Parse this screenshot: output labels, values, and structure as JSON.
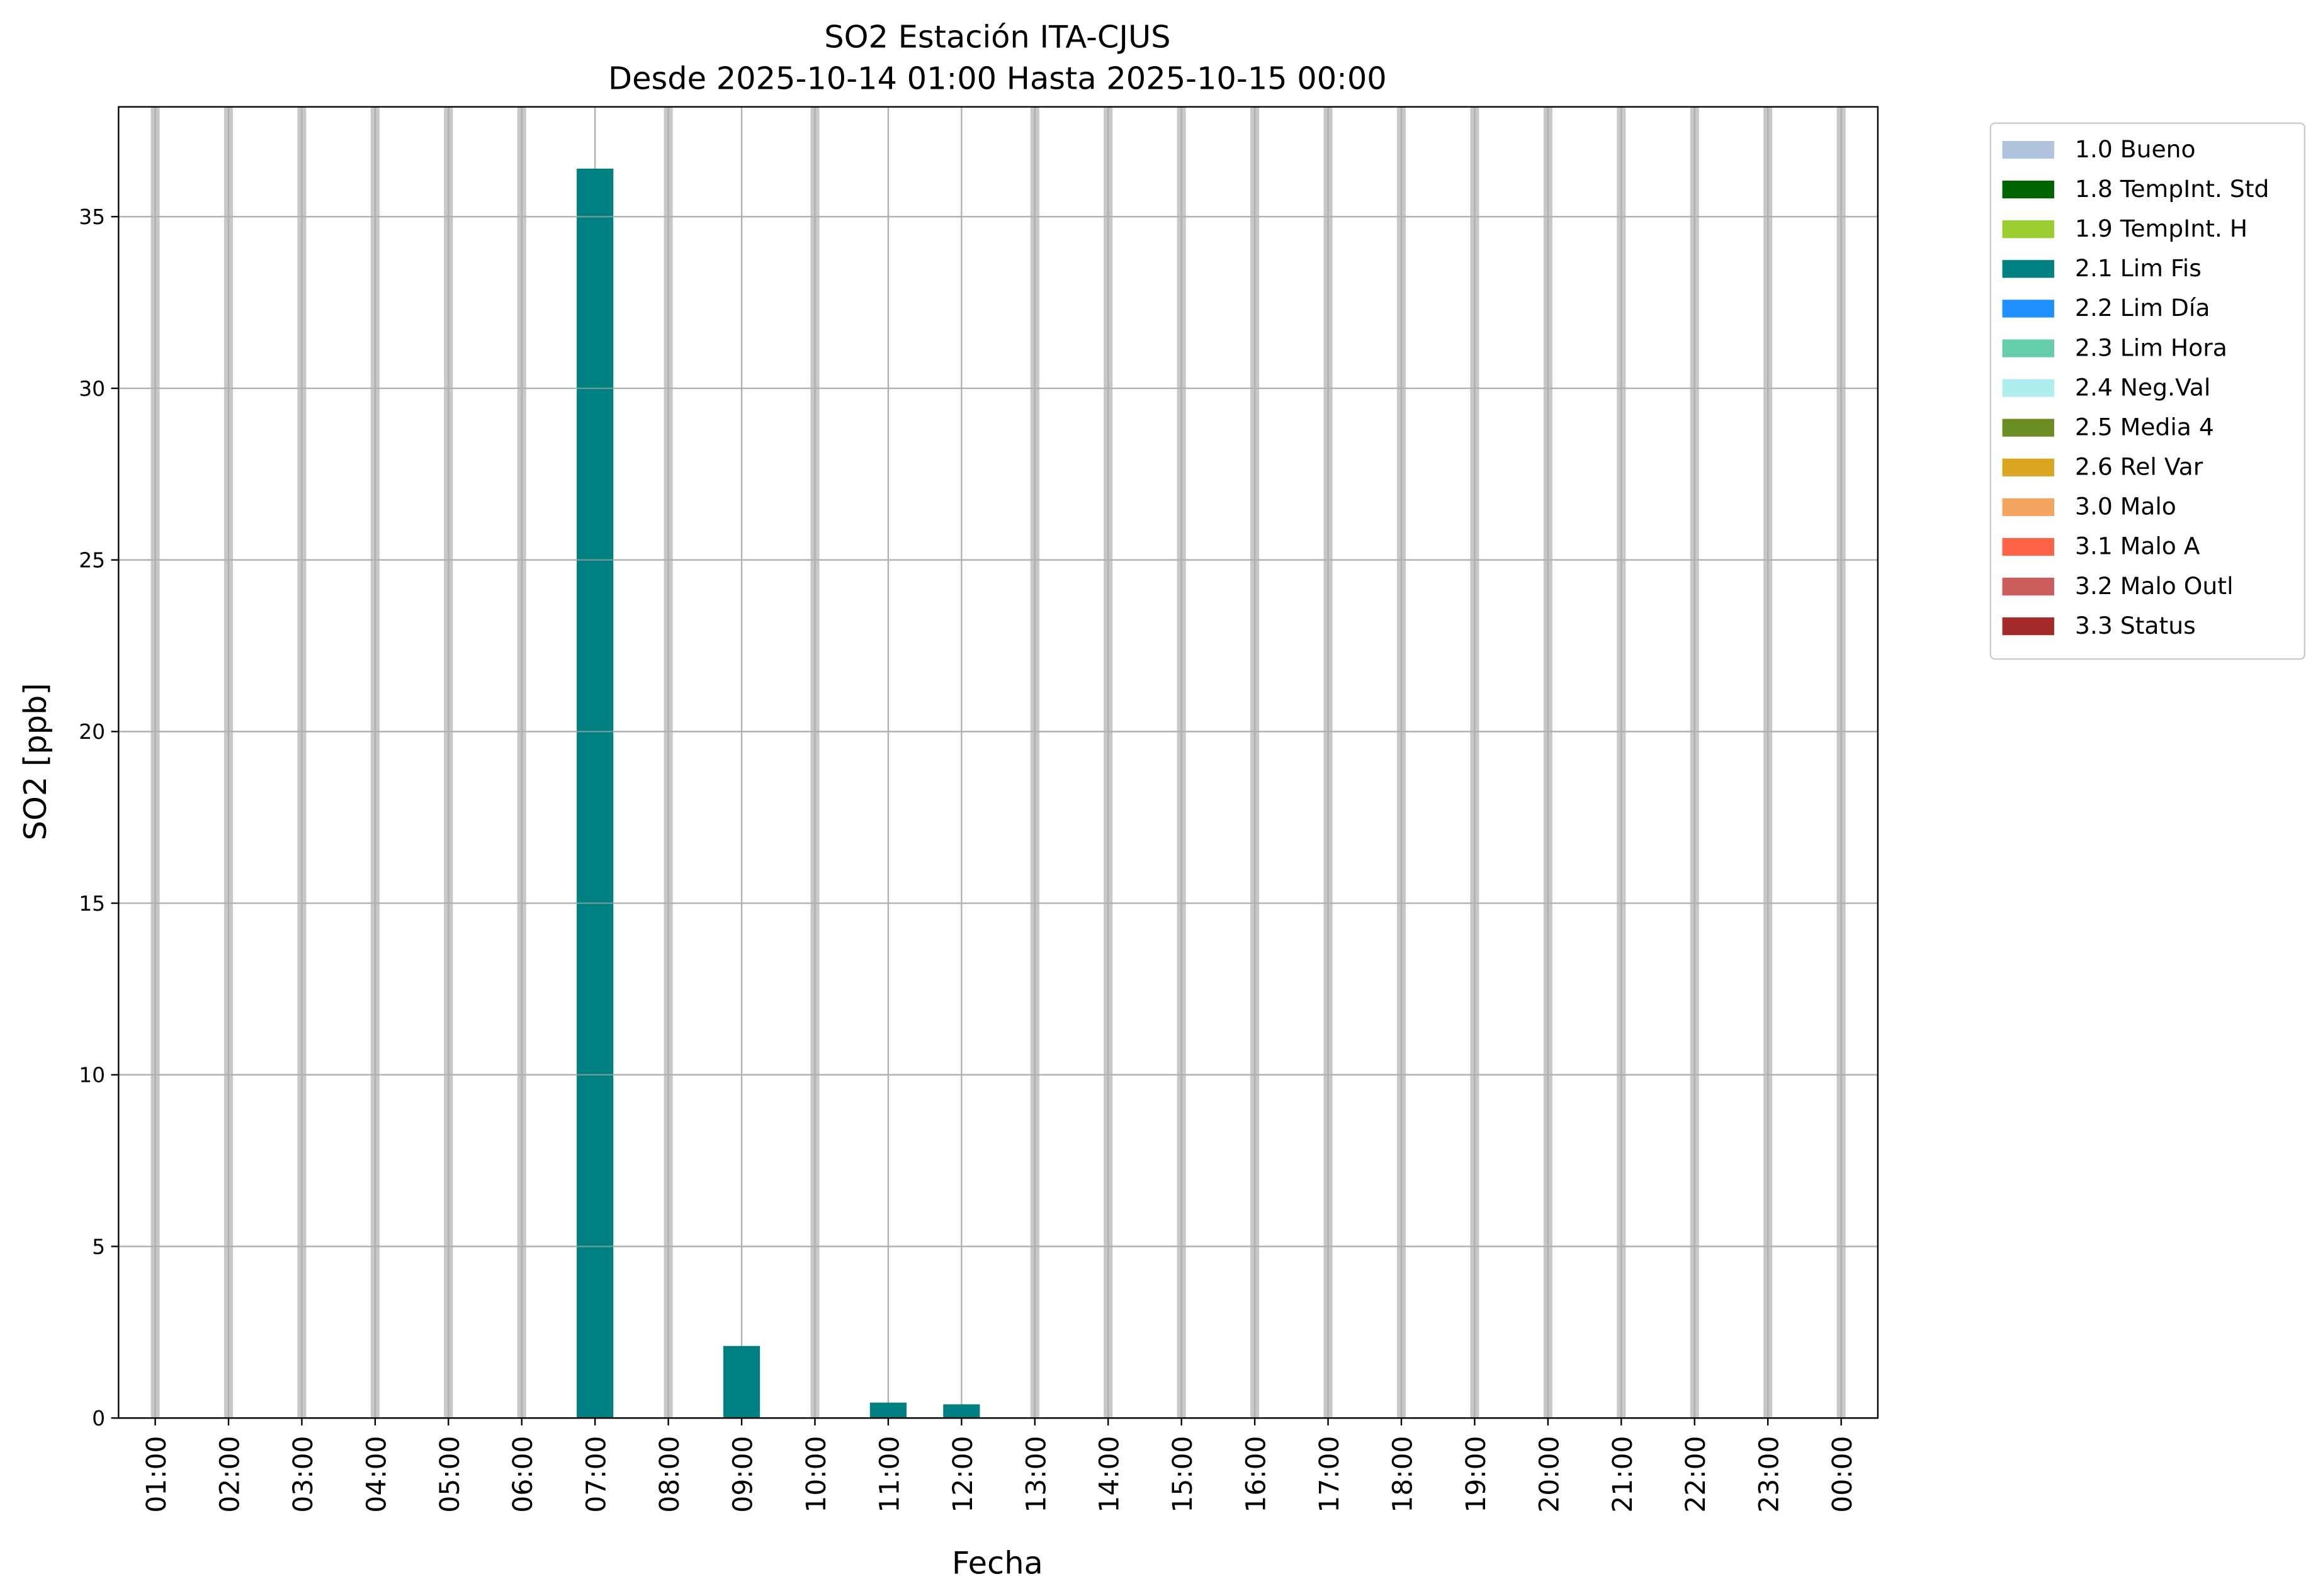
{
  "chart_data": {
    "type": "bar",
    "title": "SO2 Estación ITA-CJUS",
    "subtitle": "Desde 2025-10-14 01:00 Hasta 2025-10-15 00:00",
    "xlabel": "Fecha",
    "ylabel": "SO2 [ppb]",
    "categories": [
      "01:00",
      "02:00",
      "03:00",
      "04:00",
      "05:00",
      "06:00",
      "07:00",
      "08:00",
      "09:00",
      "10:00",
      "11:00",
      "12:00",
      "13:00",
      "14:00",
      "15:00",
      "16:00",
      "17:00",
      "18:00",
      "19:00",
      "20:00",
      "21:00",
      "22:00",
      "23:00",
      "00:00"
    ],
    "values": [
      null,
      null,
      null,
      null,
      null,
      null,
      36.4,
      null,
      2.1,
      null,
      0.45,
      0.4,
      null,
      null,
      null,
      null,
      null,
      null,
      null,
      null,
      null,
      null,
      null,
      null
    ],
    "color": "#008080",
    "missing_color": "#c8c8c8",
    "ylim": [
      0,
      38.2
    ],
    "yticks": [
      0,
      5,
      10,
      15,
      20,
      25,
      30,
      35
    ],
    "grid": true,
    "legend_position": "outside-upper-right",
    "legend": [
      {
        "name": "1.0 Bueno",
        "color": "#b0c4de"
      },
      {
        "name": "1.8 TempInt. Std",
        "color": "#006400"
      },
      {
        "name": "1.9 TempInt. H",
        "color": "#9acd32"
      },
      {
        "name": "2.1 Lim Fis",
        "color": "#008080"
      },
      {
        "name": "2.2 Lim Día",
        "color": "#1e90ff"
      },
      {
        "name": "2.3 Lim Hora",
        "color": "#66cdaa"
      },
      {
        "name": "2.4 Neg.Val",
        "color": "#afeeee"
      },
      {
        "name": "2.5 Media 4",
        "color": "#6b8e23"
      },
      {
        "name": "2.6 Rel Var",
        "color": "#daa520"
      },
      {
        "name": "3.0 Malo",
        "color": "#f4a460"
      },
      {
        "name": "3.1 Malo A",
        "color": "#ff6347"
      },
      {
        "name": "3.2 Malo Outl",
        "color": "#cd5c5c"
      },
      {
        "name": "3.3 Status",
        "color": "#a52a2a"
      }
    ]
  }
}
